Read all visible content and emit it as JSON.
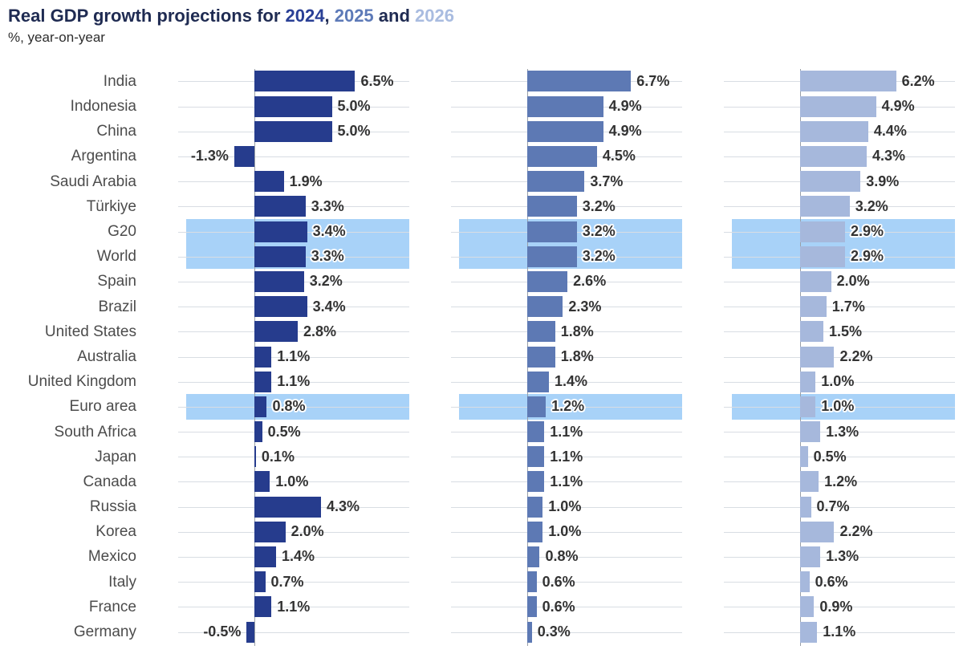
{
  "title": {
    "prefix": "Real GDP growth projections for ",
    "year_2024": "2024",
    "comma": ", ",
    "year_2025": "2025",
    "and": " and ",
    "year_2026": "2026"
  },
  "subtitle": "%, year-on-year",
  "colors": {
    "bar_2024": "#263c8d",
    "bar_2025": "#5d79b4",
    "bar_2026": "#a6b8dc",
    "title_text": "#1f2b52",
    "title_2024": "#2a4096",
    "title_2025": "#5d7ab8",
    "title_2026": "#a9bce0",
    "highlight_band": "#a8d2f8",
    "gridline": "#d8dde3",
    "axis_line": "#9aa0a7",
    "label_text": "#4c4c4c",
    "value_text": "#333333"
  },
  "chart_data": {
    "type": "bar",
    "orientation": "horizontal",
    "title": "Real GDP growth projections for 2024, 2025 and 2026",
    "unit_label": "%, year-on-year",
    "value_suffix": "%",
    "legend_position": "in-title (years colored to match bars)",
    "grid": "per-row horizontal gridlines, one panel per year side by side",
    "xlim_per_panel": [
      -1.5,
      8
    ],
    "categories": [
      "India",
      "Indonesia",
      "China",
      "Argentina",
      "Saudi Arabia",
      "Türkiye",
      "G20",
      "World",
      "Spain",
      "Brazil",
      "United States",
      "Australia",
      "United Kingdom",
      "Euro area",
      "South Africa",
      "Japan",
      "Canada",
      "Russia",
      "Korea",
      "Mexico",
      "Italy",
      "France",
      "Germany"
    ],
    "highlighted_categories": [
      "G20",
      "World",
      "Euro area"
    ],
    "series": [
      {
        "name": "2024",
        "values": [
          6.5,
          5.0,
          5.0,
          -1.3,
          1.9,
          3.3,
          3.4,
          3.3,
          3.2,
          3.4,
          2.8,
          1.1,
          1.1,
          0.8,
          0.5,
          0.1,
          1.0,
          4.3,
          2.0,
          1.4,
          0.7,
          1.1,
          -0.5
        ]
      },
      {
        "name": "2025",
        "values": [
          6.7,
          4.9,
          4.9,
          4.5,
          3.7,
          3.2,
          3.2,
          3.2,
          2.6,
          2.3,
          1.8,
          1.8,
          1.4,
          1.2,
          1.1,
          1.1,
          1.1,
          1.0,
          1.0,
          0.8,
          0.6,
          0.6,
          0.3
        ]
      },
      {
        "name": "2026",
        "values": [
          6.2,
          4.9,
          4.4,
          4.3,
          3.9,
          3.2,
          2.9,
          2.9,
          2.0,
          1.7,
          1.5,
          2.2,
          1.0,
          1.0,
          1.3,
          0.5,
          1.2,
          0.7,
          2.2,
          1.3,
          0.6,
          0.9,
          1.1
        ]
      }
    ]
  }
}
